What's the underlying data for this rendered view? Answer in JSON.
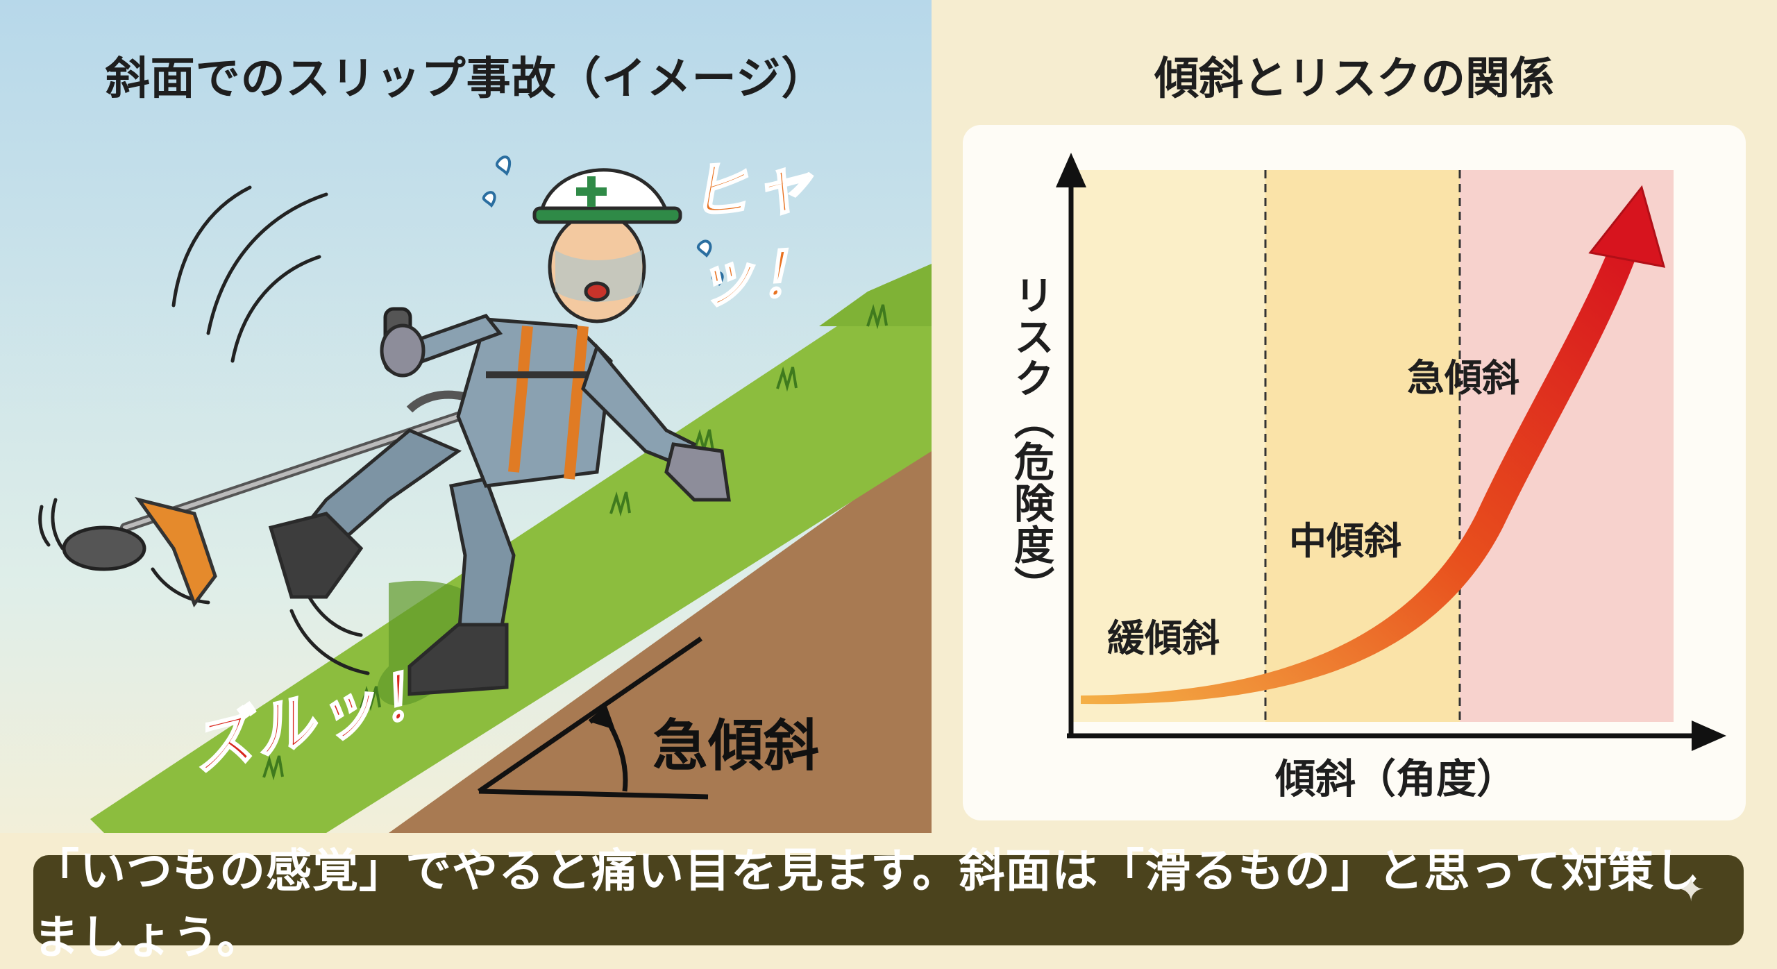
{
  "left_panel": {
    "title": "斜面でのスリップ事故（イメージ）",
    "sfx_surprise": "ヒャッ！",
    "sfx_slip": "ズルッ！",
    "slope_label": "急傾斜"
  },
  "right_panel": {
    "title": "傾斜とリスクの関係",
    "y_axis_label": "リスク（危険度）",
    "x_axis_label": "傾斜（角度）",
    "zones": [
      {
        "label": "緩傾斜",
        "color": "#fbefc8"
      },
      {
        "label": "中傾斜",
        "color": "#fae3a8"
      },
      {
        "label": "急傾斜",
        "color": "#f7d2cd"
      }
    ]
  },
  "footer": {
    "message": "「いつもの感覚」でやると痛い目を見ます。斜面は「滑るもの」と思って対策しましょう。"
  },
  "colors": {
    "sky_top": "#b9d9ea",
    "sky_bottom": "#f2efd9",
    "grass": "#8cbd3e",
    "soil": "#a87a52",
    "risk_arrow_start": "#f2a33a",
    "risk_arrow_end": "#d7141e",
    "footer_bg": "#4b431d"
  }
}
